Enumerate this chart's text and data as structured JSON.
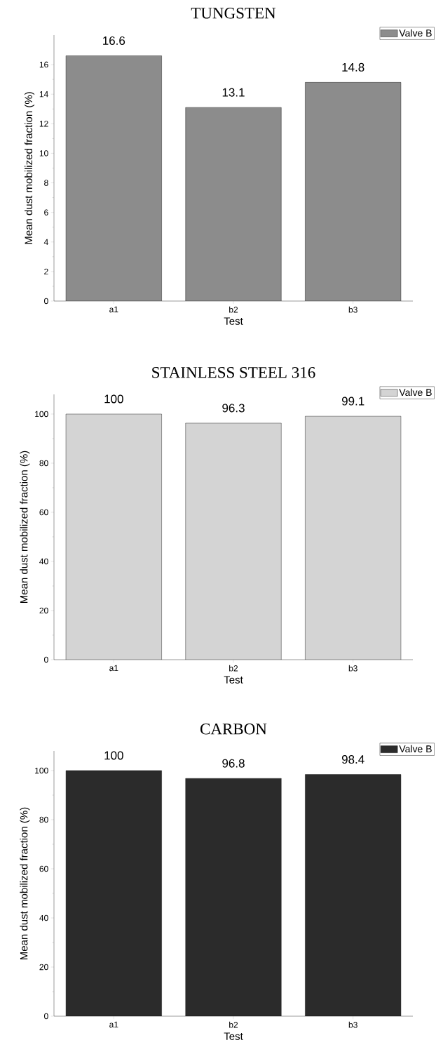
{
  "chart_data": [
    {
      "type": "bar",
      "title": "TUNGSTEN",
      "xlabel": "Test",
      "ylabel": "Mean dust mobilized fraction (%)",
      "categories": [
        "a1",
        "b2",
        "b3"
      ],
      "series": [
        {
          "name": "Valve B",
          "color": "#8c8c8c",
          "values": [
            16.6,
            13.1,
            14.8
          ]
        }
      ],
      "ylim": [
        0,
        18
      ],
      "yticks": [
        0,
        2,
        4,
        6,
        8,
        10,
        12,
        14,
        16
      ],
      "data_labels": true,
      "legend": "top right"
    },
    {
      "type": "bar",
      "title": "STAINLESS STEEL 316",
      "xlabel": "Test",
      "ylabel": "Mean dust mobilized fraction (%)",
      "categories": [
        "a1",
        "b2",
        "b3"
      ],
      "series": [
        {
          "name": "Valve B",
          "color": "#d4d4d4",
          "values": [
            100,
            96.3,
            99.1
          ]
        }
      ],
      "ylim": [
        0,
        108
      ],
      "yticks": [
        0,
        20,
        40,
        60,
        80,
        100
      ],
      "data_labels": true,
      "legend": "top right"
    },
    {
      "type": "bar",
      "title": "CARBON",
      "xlabel": "Test",
      "ylabel": "Mean dust mobilized fraction (%)",
      "categories": [
        "a1",
        "b2",
        "b3"
      ],
      "series": [
        {
          "name": "Valve B",
          "color": "#2b2b2b",
          "values": [
            100,
            96.8,
            98.4
          ]
        }
      ],
      "ylim": [
        0,
        108
      ],
      "yticks": [
        0,
        20,
        40,
        60,
        80,
        100
      ],
      "data_labels": true,
      "legend": "top right"
    }
  ]
}
